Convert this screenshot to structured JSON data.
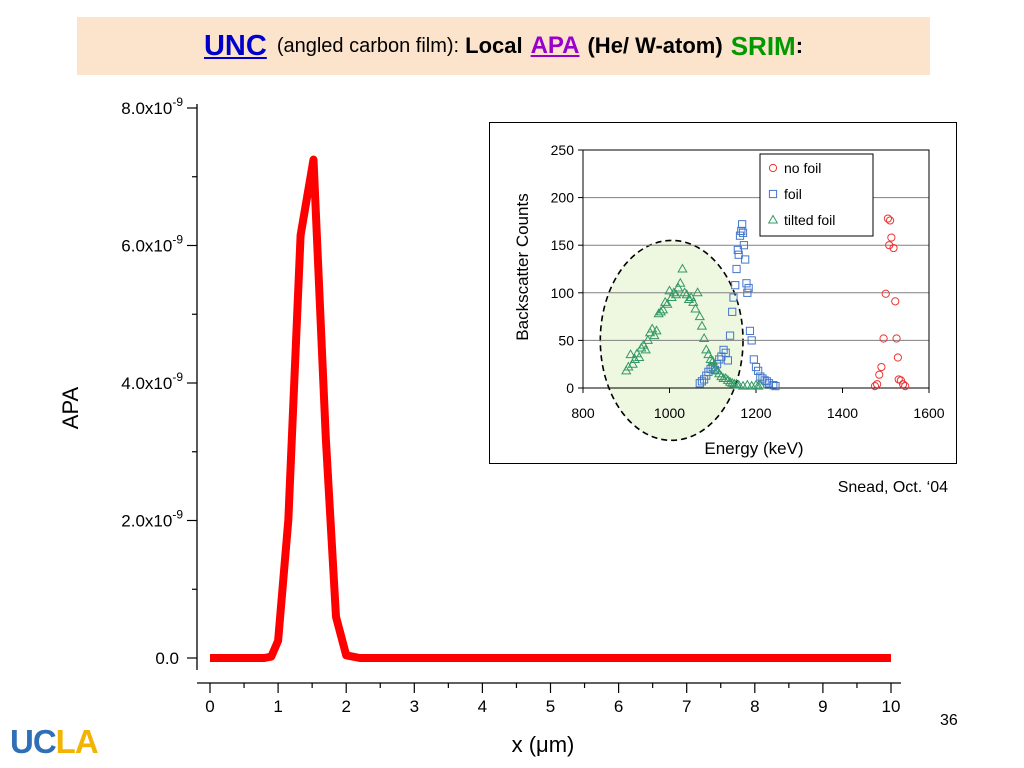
{
  "slide": {
    "title": {
      "unc": "UNC",
      "subtitle": "(angled carbon film):",
      "local": "Local",
      "apa": "APA",
      "he_w": "(He/ W-atom)",
      "srim": "SRIM",
      "colon": ":"
    },
    "credit": "Snead, Oct. ‘04",
    "page_number": "36",
    "logo": {
      "part1": "UC",
      "part2": "LA"
    }
  },
  "chart_data": [
    {
      "type": "line",
      "xlabel": "x (μm)",
      "ylabel": "APA",
      "xlim": [
        0,
        10
      ],
      "ylim": [
        0,
        8e-09
      ],
      "x_ticks": [
        0,
        1,
        2,
        3,
        4,
        5,
        6,
        7,
        8,
        9,
        10
      ],
      "x_tick_labels": [
        "0",
        "1",
        "2",
        "3",
        "4",
        "5",
        "6",
        "7",
        "8",
        "9",
        "10"
      ],
      "y_ticks": [
        0,
        2e-09,
        4e-09,
        6e-09,
        8e-09
      ],
      "y_tick_labels": [
        {
          "base": "0.0",
          "exp": ""
        },
        {
          "base": "2.0x10",
          "exp": "-9"
        },
        {
          "base": "4.0x10",
          "exp": "-9"
        },
        {
          "base": "6.0x10",
          "exp": "-9"
        },
        {
          "base": "8.0x10",
          "exp": "-9"
        }
      ],
      "line_color": "#ff0000",
      "series": [
        {
          "x": [
            0.0,
            0.8,
            0.9,
            1.0,
            1.15,
            1.33,
            1.52,
            1.7,
            1.85,
            2.0,
            2.2,
            10.0
          ],
          "y": [
            0.0,
            0.0,
            2e-11,
            2.5e-10,
            2e-09,
            6.15e-09,
            7.25e-09,
            3.2e-09,
            6e-10,
            4e-11,
            0.0,
            0.0
          ]
        }
      ]
    },
    {
      "type": "scatter",
      "xlabel": "Energy (keV)",
      "ylabel": "Backscatter Counts",
      "xlim": [
        800,
        1600
      ],
      "ylim": [
        0,
        250
      ],
      "x_ticks": [
        800,
        1000,
        1200,
        1400,
        1600
      ],
      "y_ticks": [
        0,
        50,
        100,
        150,
        200,
        250
      ],
      "grid": true,
      "legend_position": "top-right",
      "series": [
        {
          "name": "no foil",
          "marker": "circle",
          "color": "#ee3333",
          "points": [
            [
              1475,
              2
            ],
            [
              1480,
              4
            ],
            [
              1485,
              14
            ],
            [
              1490,
              22
            ],
            [
              1495,
              52
            ],
            [
              1500,
              99
            ],
            [
              1505,
              178
            ],
            [
              1508,
              150
            ],
            [
              1510,
              176
            ],
            [
              1513,
              158
            ],
            [
              1518,
              147
            ],
            [
              1522,
              91
            ],
            [
              1525,
              52
            ],
            [
              1528,
              32
            ],
            [
              1530,
              9
            ],
            [
              1535,
              8
            ],
            [
              1540,
              4
            ],
            [
              1545,
              2
            ]
          ]
        },
        {
          "name": "foil",
          "marker": "square",
          "color": "#4477cc",
          "points": [
            [
              1070,
              5
            ],
            [
              1075,
              7
            ],
            [
              1080,
              9
            ],
            [
              1085,
              13
            ],
            [
              1090,
              17
            ],
            [
              1095,
              20
            ],
            [
              1100,
              22
            ],
            [
              1105,
              19
            ],
            [
              1110,
              25
            ],
            [
              1115,
              30
            ],
            [
              1120,
              33
            ],
            [
              1125,
              40
            ],
            [
              1130,
              37
            ],
            [
              1135,
              29
            ],
            [
              1140,
              55
            ],
            [
              1145,
              80
            ],
            [
              1148,
              95
            ],
            [
              1152,
              108
            ],
            [
              1155,
              125
            ],
            [
              1158,
              145
            ],
            [
              1160,
              140
            ],
            [
              1163,
              160
            ],
            [
              1166,
              165
            ],
            [
              1168,
              172
            ],
            [
              1170,
              163
            ],
            [
              1172,
              150
            ],
            [
              1175,
              135
            ],
            [
              1178,
              110
            ],
            [
              1180,
              100
            ],
            [
              1183,
              105
            ],
            [
              1186,
              60
            ],
            [
              1190,
              50
            ],
            [
              1195,
              30
            ],
            [
              1200,
              22
            ],
            [
              1205,
              18
            ],
            [
              1210,
              12
            ],
            [
              1215,
              10
            ],
            [
              1220,
              8
            ],
            [
              1225,
              7
            ],
            [
              1230,
              5
            ],
            [
              1240,
              3
            ],
            [
              1245,
              2
            ]
          ]
        },
        {
          "name": "tilted foil",
          "marker": "triangle",
          "color": "#339966",
          "points": [
            [
              900,
              18
            ],
            [
              905,
              22
            ],
            [
              910,
              35
            ],
            [
              915,
              25
            ],
            [
              920,
              30
            ],
            [
              925,
              36
            ],
            [
              930,
              32
            ],
            [
              935,
              42
            ],
            [
              940,
              45
            ],
            [
              945,
              40
            ],
            [
              950,
              50
            ],
            [
              955,
              58
            ],
            [
              960,
              62
            ],
            [
              965,
              55
            ],
            [
              970,
              60
            ],
            [
              975,
              78
            ],
            [
              980,
              80
            ],
            [
              985,
              82
            ],
            [
              990,
              90
            ],
            [
              995,
              88
            ],
            [
              1000,
              102
            ],
            [
              1005,
              95
            ],
            [
              1010,
              100
            ],
            [
              1015,
              98
            ],
            [
              1020,
              105
            ],
            [
              1025,
              110
            ],
            [
              1030,
              125
            ],
            [
              1035,
              100
            ],
            [
              1040,
              98
            ],
            [
              1045,
              93
            ],
            [
              1050,
              95
            ],
            [
              1055,
              90
            ],
            [
              1060,
              83
            ],
            [
              1065,
              100
            ],
            [
              1070,
              75
            ],
            [
              1075,
              65
            ],
            [
              1080,
              52
            ],
            [
              1085,
              40
            ],
            [
              1090,
              35
            ],
            [
              1095,
              30
            ],
            [
              1100,
              28
            ],
            [
              1105,
              20
            ],
            [
              1110,
              18
            ],
            [
              1115,
              15
            ],
            [
              1120,
              12
            ],
            [
              1125,
              10
            ],
            [
              1130,
              10
            ],
            [
              1135,
              8
            ],
            [
              1140,
              6
            ],
            [
              1145,
              5
            ],
            [
              1150,
              4
            ],
            [
              1155,
              4
            ],
            [
              1160,
              3
            ],
            [
              1170,
              2
            ],
            [
              1180,
              3
            ],
            [
              1190,
              2
            ],
            [
              1200,
              3
            ],
            [
              1205,
              2
            ],
            [
              1210,
              3
            ]
          ]
        }
      ],
      "annotation": {
        "shape": "dashed-ellipse",
        "fill": "#eef7e0",
        "center": [
          1005,
          50
        ],
        "radii_data": [
          165,
          105
        ]
      }
    }
  ]
}
